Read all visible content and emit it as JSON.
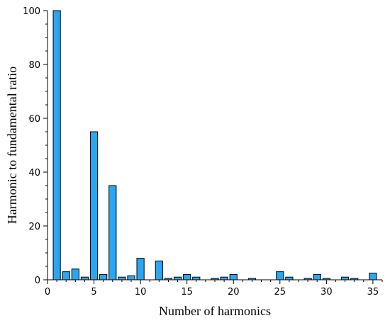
{
  "chart_data": {
    "type": "bar",
    "title": "",
    "xlabel": "Number of harmonics",
    "ylabel": "Harmonic to fundamental ratio",
    "xlim": [
      0,
      36
    ],
    "ylim": [
      0,
      100
    ],
    "x_ticks": [
      0,
      5,
      10,
      15,
      20,
      25,
      30,
      35
    ],
    "y_ticks": [
      0,
      20,
      40,
      60,
      80,
      100
    ],
    "grid": false,
    "bar_color": "#2BA6F0",
    "bar_edge_color": "#000000",
    "x": [
      1,
      2,
      3,
      4,
      5,
      6,
      7,
      8,
      9,
      10,
      12,
      13,
      14,
      15,
      16,
      18,
      19,
      20,
      22,
      25,
      26,
      28,
      29,
      30,
      32,
      33,
      35
    ],
    "values": [
      100,
      3,
      4,
      1,
      55,
      2,
      35,
      1,
      1.5,
      8,
      7,
      0.5,
      1,
      2,
      1,
      0.5,
      1,
      2,
      0.5,
      3,
      1,
      0.5,
      2,
      0.5,
      1,
      0.5,
      2.5
    ]
  }
}
